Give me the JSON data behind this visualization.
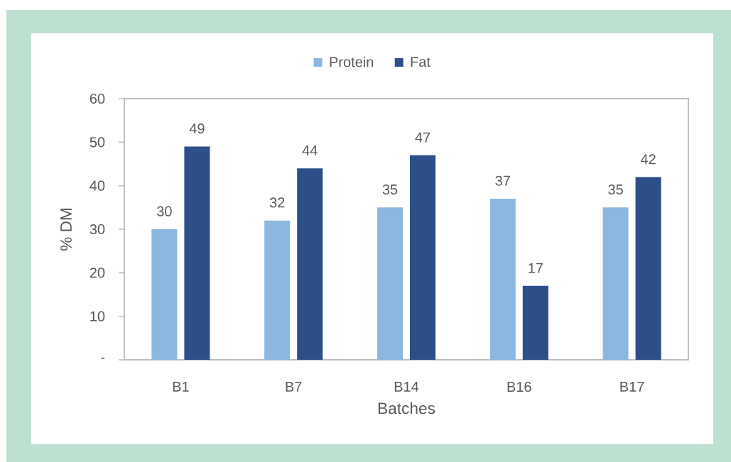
{
  "chart_data": {
    "type": "bar",
    "xlabel": "Batches",
    "ylabel": "% DM",
    "categories": [
      "B1",
      "B7",
      "B14",
      "B16",
      "B17"
    ],
    "series": [
      {
        "name": "Protein",
        "color": "#8cb8e0",
        "values": [
          30,
          32,
          35,
          37,
          35
        ]
      },
      {
        "name": "Fat",
        "color": "#2c4f8a",
        "values": [
          49,
          44,
          47,
          17,
          42
        ]
      }
    ],
    "ylim": [
      0,
      60
    ],
    "yticks": [
      {
        "value": 0,
        "label": "-"
      },
      10,
      20,
      30,
      40,
      50,
      60
    ],
    "data_labels": true,
    "legend": "top"
  }
}
